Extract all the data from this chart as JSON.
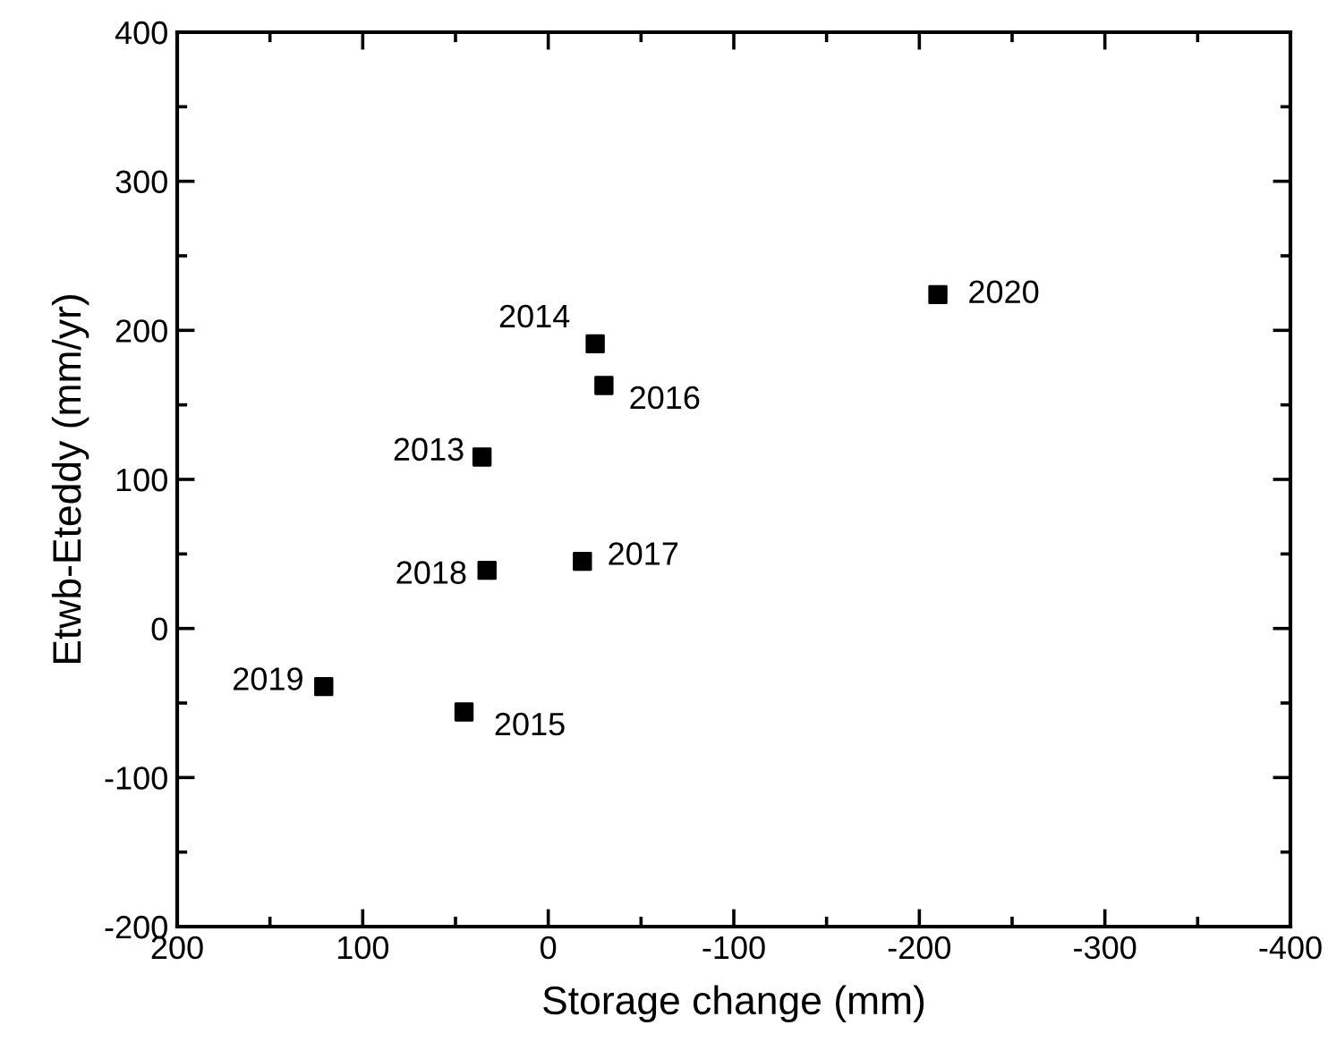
{
  "chart_data": {
    "type": "scatter",
    "xlabel": "Storage change (mm)",
    "ylabel": "Etwb-Eteddy (mm/yr)",
    "x": [
      35.7,
      -25.3,
      45.4,
      -30,
      -18.4,
      33,
      121,
      -210
    ],
    "series": [
      {
        "color": "#000000",
        "values": [
          115,
          191,
          -56,
          163,
          45,
          39,
          -39,
          224
        ]
      }
    ],
    "marker": "square",
    "xlim": [
      200,
      -400
    ],
    "xticks": [
      200,
      100,
      0,
      -100,
      -200,
      -300,
      -400
    ],
    "ylim": [
      -200,
      400
    ],
    "yticks": [
      -200,
      -100,
      0,
      100,
      200,
      300,
      400
    ],
    "grid": false,
    "legend": false,
    "annotations": [
      {
        "text": "2013",
        "x": 35.7,
        "y": 115
      },
      {
        "text": "2014",
        "x": -25.3,
        "y": 191
      },
      {
        "text": "2015",
        "x": 45.4,
        "y": -56
      },
      {
        "text": "2016",
        "x": -30,
        "y": 163
      },
      {
        "text": "2017",
        "x": -18.4,
        "y": 45
      },
      {
        "text": "2018",
        "x": 33,
        "y": 39
      },
      {
        "text": "2019",
        "x": 121,
        "y": -39
      },
      {
        "text": "2020",
        "x": -210,
        "y": 224
      }
    ]
  }
}
